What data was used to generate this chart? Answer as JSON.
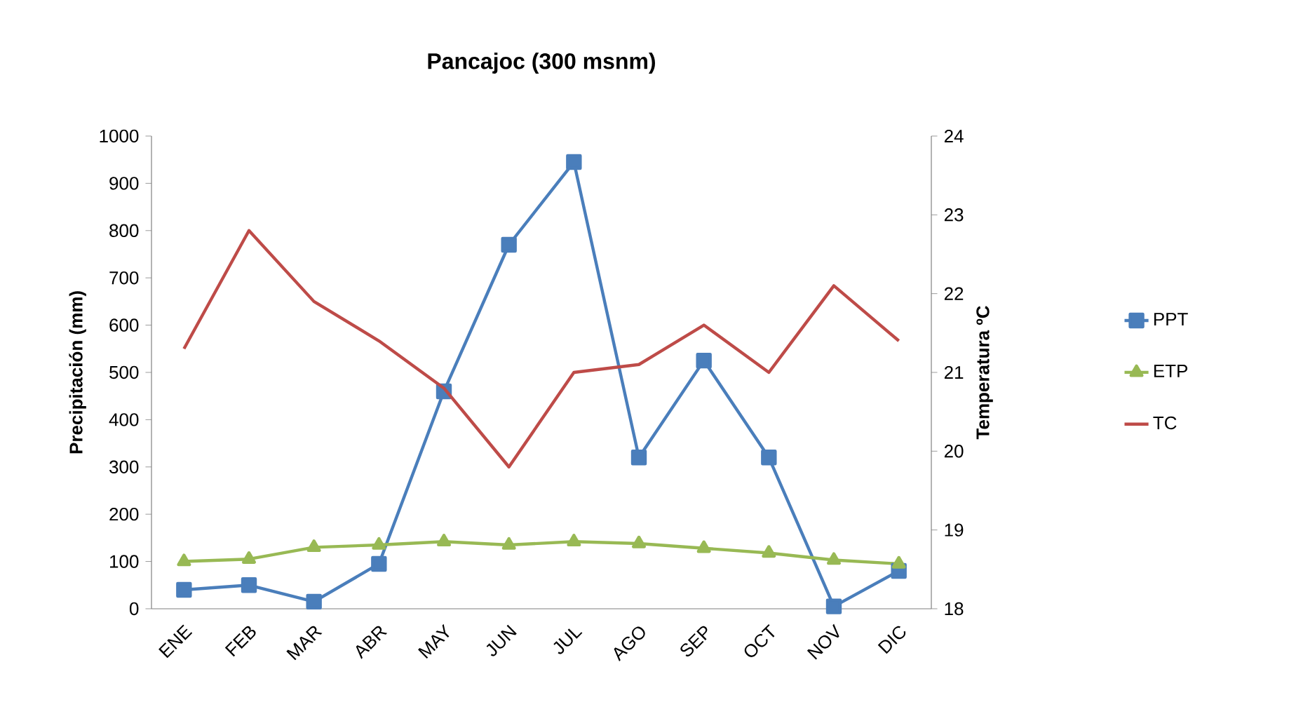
{
  "chart_data": {
    "type": "line",
    "title": "Pancajoc (300 msnm)",
    "ylabel": "Precipitación (mm)",
    "y2label": "Temperatura ºC",
    "categories": [
      "ENE",
      "FEB",
      "MAR",
      "ABR",
      "MAY",
      "JUN",
      "JUL",
      "AGO",
      "SEP",
      "OCT",
      "NOV",
      "DIC"
    ],
    "series": [
      {
        "name": "PPT",
        "color": "#4a7ebb",
        "marker": "square",
        "values": [
          40,
          50,
          15,
          95,
          460,
          770,
          945,
          320,
          525,
          320,
          5,
          80
        ]
      },
      {
        "name": "ETP",
        "color": "#98b954",
        "marker": "triangle",
        "values": [
          100,
          105,
          130,
          135,
          142,
          135,
          142,
          138,
          128,
          118,
          103,
          95
        ]
      },
      {
        "name": "TC",
        "color": "#be4b48",
        "marker": "none",
        "axis": "y2",
        "values": [
          21.3,
          22.8,
          21.9,
          21.4,
          20.8,
          19.8,
          21.0,
          21.1,
          21.6,
          21.0,
          22.1,
          21.4
        ]
      }
    ],
    "ylim": [
      0,
      1000
    ],
    "yticks": [
      0,
      100,
      200,
      300,
      400,
      500,
      600,
      700,
      800,
      900,
      1000
    ],
    "y2lim": [
      18,
      24
    ],
    "y2ticks": [
      18,
      19,
      20,
      21,
      22,
      23,
      24
    ],
    "legend": "right",
    "grid": false,
    "line_style": "solid"
  }
}
